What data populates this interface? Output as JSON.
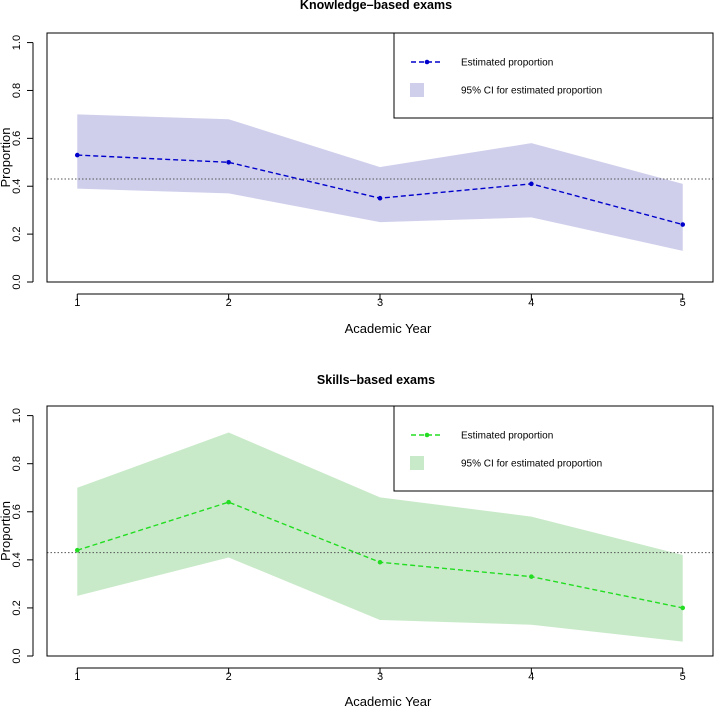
{
  "chart_data": [
    {
      "type": "line",
      "title": "Knowledge–based exams",
      "xlabel": "Academic Year",
      "ylabel": "Proportion",
      "x": [
        1,
        2,
        3,
        4,
        5
      ],
      "xticks": [
        "1",
        "2",
        "3",
        "4",
        "5"
      ],
      "yticks": [
        "0.0",
        "0.2",
        "0.4",
        "0.6",
        "0.8",
        "1.0"
      ],
      "xlim": [
        0.8,
        5.2
      ],
      "ylim": [
        0,
        1.04
      ],
      "reference_line": 0.43,
      "series": [
        {
          "name": "Estimated proportion",
          "values": [
            0.53,
            0.5,
            0.35,
            0.41,
            0.24
          ],
          "color": "#0000cc"
        }
      ],
      "ci": {
        "name": "95% CI for estimated proportion",
        "lower": [
          0.39,
          0.37,
          0.25,
          0.27,
          0.13
        ],
        "upper": [
          0.7,
          0.68,
          0.48,
          0.58,
          0.41
        ],
        "color": "#cfcfec"
      },
      "legend_position": "top-right"
    },
    {
      "type": "line",
      "title": "Skills–based exams",
      "xlabel": "Academic Year",
      "ylabel": "Proportion",
      "x": [
        1,
        2,
        3,
        4,
        5
      ],
      "xticks": [
        "1",
        "2",
        "3",
        "4",
        "5"
      ],
      "yticks": [
        "0.0",
        "0.2",
        "0.4",
        "0.6",
        "0.8",
        "1.0"
      ],
      "xlim": [
        0.8,
        5.2
      ],
      "ylim": [
        0,
        1.04
      ],
      "reference_line": 0.43,
      "series": [
        {
          "name": "Estimated proportion",
          "values": [
            0.44,
            0.64,
            0.39,
            0.33,
            0.2
          ],
          "color": "#22dd22"
        }
      ],
      "ci": {
        "name": "95% CI for estimated proportion",
        "lower": [
          0.25,
          0.41,
          0.15,
          0.13,
          0.06
        ],
        "upper": [
          0.7,
          0.93,
          0.66,
          0.58,
          0.42
        ],
        "color": "#c9eac9"
      },
      "legend_position": "top-right"
    }
  ]
}
